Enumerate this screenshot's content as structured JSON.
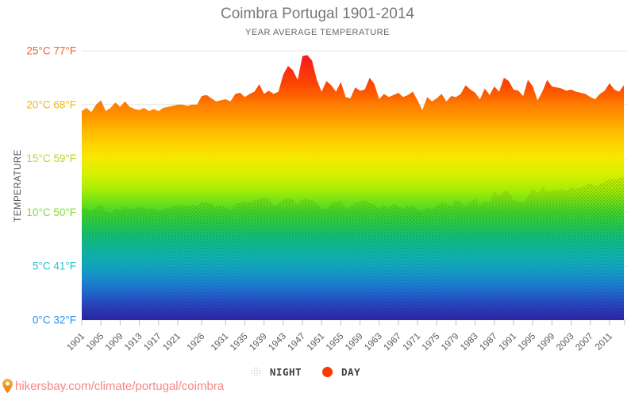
{
  "header": {
    "title": "Coimbra Portugal 1901-2014",
    "subtitle": "YEAR AVERAGE TEMPERATURE"
  },
  "y_axis": {
    "label": "TEMPERATURE",
    "label_color": "#555555",
    "ticks": [
      {
        "t": 25,
        "label": "25°C 77°F",
        "color": "#ff5a2c"
      },
      {
        "t": 20,
        "label": "20°C 68°F",
        "color": "#efb80e"
      },
      {
        "t": 15,
        "label": "15°C 59°F",
        "color": "#b3d92e"
      },
      {
        "t": 10,
        "label": "10°C 50°F",
        "color": "#7fdd35"
      },
      {
        "t": 5,
        "label": "5°C 41°F",
        "color": "#21c6d2"
      },
      {
        "t": 0,
        "label": "0°C 32°F",
        "color": "#2492ef"
      }
    ],
    "grid_color": "#e7e7e7"
  },
  "x_axis": {
    "tick_years": [
      1901,
      1905,
      1909,
      1913,
      1917,
      1921,
      1926,
      1931,
      1935,
      1939,
      1943,
      1947,
      1951,
      1955,
      1959,
      1963,
      1967,
      1971,
      1975,
      1979,
      1983,
      1987,
      1991,
      1995,
      1999,
      2003,
      2007,
      2011
    ],
    "label_color": "#56575f",
    "tick_color": "#b9c1e2"
  },
  "chart_data": {
    "type": "area",
    "title": "Coimbra Portugal 1901-2014",
    "subtitle": "YEAR AVERAGE TEMPERATURE",
    "xlabel": "",
    "ylabel": "TEMPERATURE",
    "unit": "°C",
    "ylim": [
      0,
      25
    ],
    "x_start": 1901,
    "x_end": 2014,
    "x_step": 1,
    "grid": "horizontal",
    "legend_position": "bottom",
    "gradient_stops": [
      [
        0.0,
        "#fa0e27"
      ],
      [
        0.06,
        "#fa2a12"
      ],
      [
        0.12,
        "#fb4403"
      ],
      [
        0.16,
        "#fc5c00"
      ],
      [
        0.2,
        "#fe7e00"
      ],
      [
        0.24,
        "#ff9400"
      ],
      [
        0.3,
        "#ffba00"
      ],
      [
        0.36,
        "#fdd900"
      ],
      [
        0.4,
        "#f5e900"
      ],
      [
        0.46,
        "#d5f000"
      ],
      [
        0.52,
        "#a3ec07"
      ],
      [
        0.56,
        "#71e218"
      ],
      [
        0.6,
        "#43d82b"
      ],
      [
        0.64,
        "#2ad04a"
      ],
      [
        0.68,
        "#18c671"
      ],
      [
        0.72,
        "#10c095"
      ],
      [
        0.76,
        "#10bab4"
      ],
      [
        0.8,
        "#12aec8"
      ],
      [
        0.84,
        "#1897d5"
      ],
      [
        0.88,
        "#1e7cdb"
      ],
      [
        0.92,
        "#2758cf"
      ],
      [
        0.96,
        "#2c3cbe"
      ],
      [
        1.0,
        "#2f27ac"
      ]
    ],
    "series": [
      {
        "name": "DAY",
        "marker_color": "#fb3a00",
        "values": [
          19.4,
          19.7,
          19.3,
          20.0,
          20.4,
          19.4,
          19.7,
          20.2,
          19.8,
          20.3,
          19.8,
          19.6,
          19.5,
          19.7,
          19.4,
          19.6,
          19.4,
          19.7,
          19.8,
          19.9,
          20.0,
          20.0,
          19.9,
          20.0,
          20.0,
          20.8,
          20.9,
          20.6,
          20.3,
          20.4,
          20.5,
          20.3,
          21.0,
          21.1,
          20.7,
          21.0,
          21.2,
          21.9,
          21.0,
          21.3,
          21.0,
          21.2,
          22.8,
          23.6,
          23.2,
          22.3,
          24.5,
          24.6,
          24.1,
          22.3,
          21.2,
          22.2,
          21.8,
          21.2,
          22.1,
          20.7,
          20.6,
          21.6,
          21.3,
          21.4,
          22.5,
          21.9,
          20.5,
          21.0,
          20.7,
          20.9,
          21.1,
          20.7,
          20.9,
          21.2,
          20.4,
          19.5,
          20.7,
          20.3,
          20.6,
          21.0,
          20.3,
          20.8,
          20.7,
          21.0,
          21.8,
          21.4,
          21.1,
          20.5,
          21.5,
          20.9,
          21.7,
          21.2,
          22.5,
          22.2,
          21.4,
          21.3,
          20.8,
          22.3,
          21.7,
          20.4,
          21.2,
          22.3,
          21.7,
          21.6,
          21.5,
          21.3,
          21.4,
          21.2,
          21.1,
          21.0,
          20.7,
          20.5,
          21.0,
          21.3,
          22.0,
          21.4,
          21.2,
          21.8
        ]
      },
      {
        "name": "NIGHT",
        "marker_color": "dotted-gray",
        "values": [
          10.3,
          10.4,
          10.1,
          10.5,
          10.7,
          10.1,
          9.9,
          10.4,
          10.2,
          10.5,
          10.4,
          10.3,
          10.5,
          10.4,
          10.3,
          10.4,
          10.1,
          10.3,
          10.4,
          10.5,
          10.7,
          10.6,
          10.6,
          10.7,
          10.6,
          11.0,
          10.9,
          10.8,
          10.5,
          10.6,
          10.5,
          10.2,
          10.8,
          10.9,
          11.0,
          10.9,
          11.1,
          11.2,
          11.4,
          11.3,
          10.6,
          10.7,
          11.2,
          11.3,
          11.2,
          10.6,
          11.2,
          11.3,
          11.1,
          10.9,
          10.4,
          10.3,
          10.8,
          11.0,
          11.1,
          10.3,
          10.5,
          10.9,
          11.0,
          11.1,
          10.9,
          10.7,
          10.3,
          10.7,
          10.4,
          10.8,
          10.6,
          10.3,
          10.6,
          10.6,
          10.2,
          10.1,
          10.5,
          10.2,
          10.6,
          10.9,
          10.8,
          10.6,
          11.2,
          10.9,
          10.6,
          11.0,
          11.3,
          10.7,
          11.1,
          10.9,
          11.9,
          11.4,
          12.0,
          11.9,
          11.1,
          11.0,
          10.9,
          11.5,
          12.2,
          11.7,
          12.4,
          11.9,
          12.0,
          12.1,
          12.2,
          12.0,
          12.3,
          12.2,
          12.3,
          12.5,
          12.7,
          12.4,
          12.6,
          12.8,
          13.1,
          13.0,
          13.2,
          13.4
        ]
      }
    ]
  },
  "legend": {
    "night_label": "NIGHT",
    "day_label": "DAY",
    "day_color": "#fb3a00"
  },
  "footer": {
    "url": "hikersbay.com/climate/portugal/coimbra",
    "color": "#fa8585",
    "pin_colors": [
      "#f7b733",
      "#ee7512"
    ]
  }
}
